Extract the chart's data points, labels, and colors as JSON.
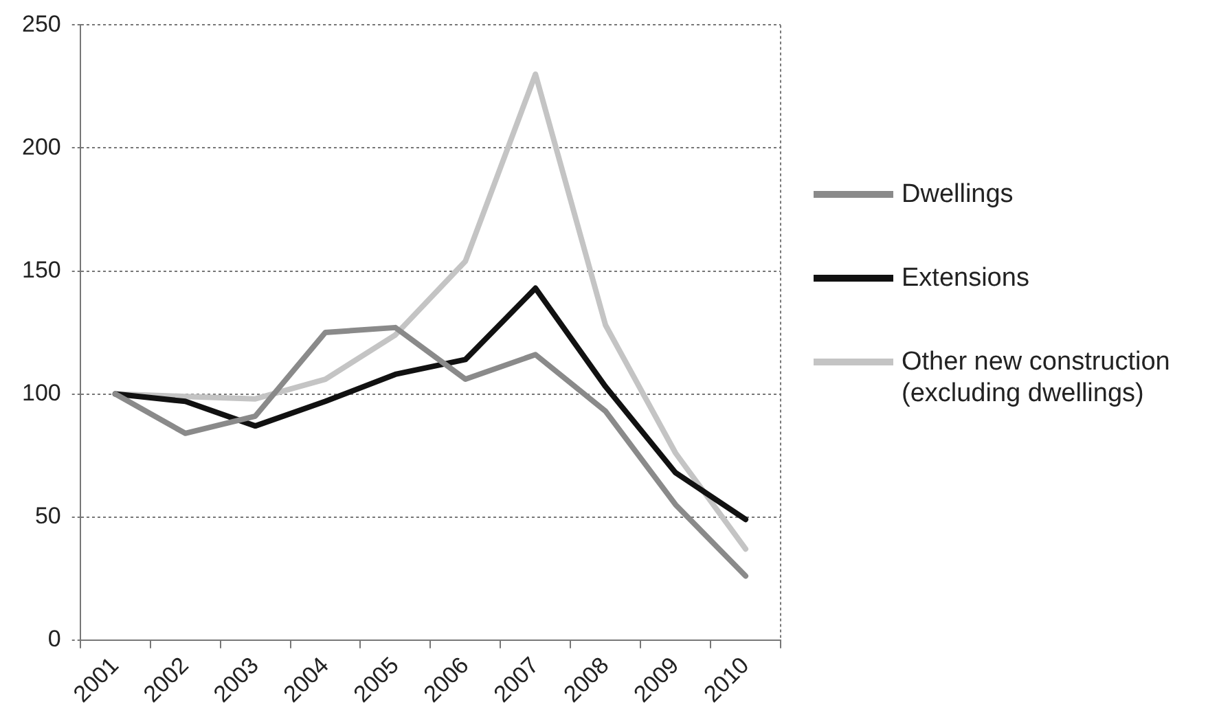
{
  "chart_data": {
    "type": "line",
    "categories": [
      "2001",
      "2002",
      "2003",
      "2004",
      "2005",
      "2006",
      "2007",
      "2008",
      "2009",
      "2010"
    ],
    "series": [
      {
        "name": "Dwellings",
        "color": "#8a8a8a",
        "values": [
          100,
          84,
          91,
          125,
          127,
          106,
          116,
          93,
          55,
          26
        ]
      },
      {
        "name": "Extensions",
        "color": "#111111",
        "values": [
          100,
          97,
          87,
          97,
          108,
          114,
          143,
          103,
          68,
          49
        ]
      },
      {
        "name": "Other new construction (excluding dwellings)",
        "color": "#c4c4c4",
        "values": [
          100,
          99,
          98,
          106,
          124,
          154,
          230,
          128,
          76,
          37
        ]
      }
    ],
    "ylim": [
      0,
      250
    ],
    "yticks": [
      0,
      50,
      100,
      150,
      200,
      250
    ],
    "grid": "y",
    "legend": "right",
    "marker": "none",
    "line_style": "solid"
  }
}
